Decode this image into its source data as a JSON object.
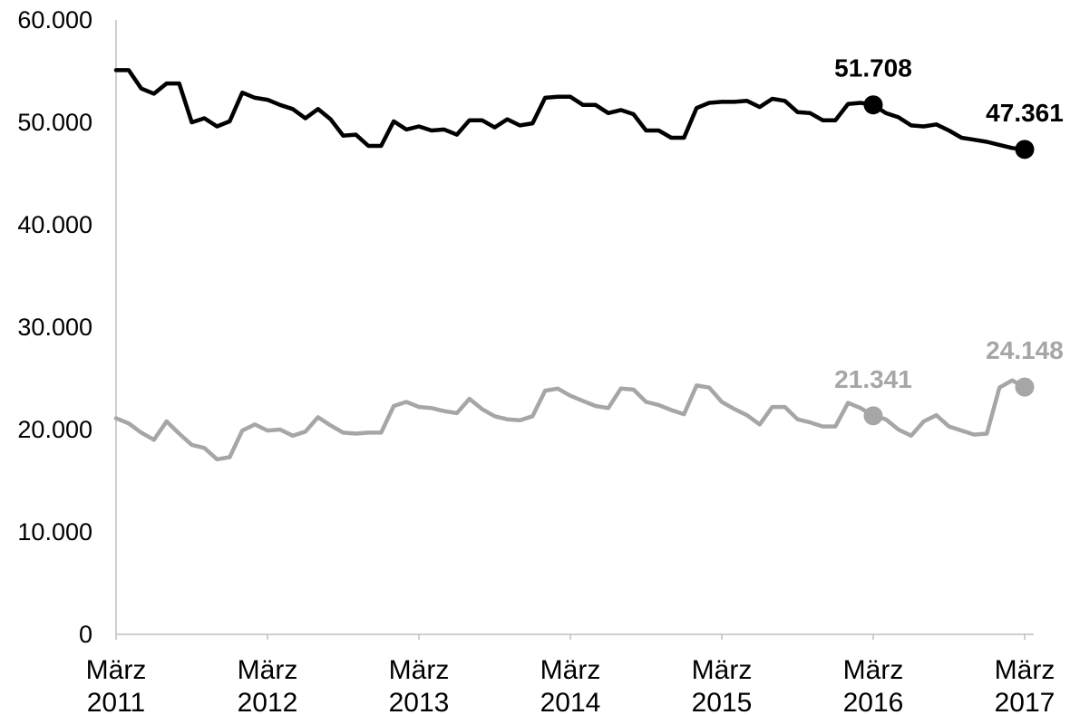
{
  "chart_data": {
    "type": "line",
    "title": "",
    "xlabel": "",
    "ylabel": "",
    "ylim": [
      0,
      60000
    ],
    "yticks": [
      {
        "value": 0,
        "label": "0"
      },
      {
        "value": 10000,
        "label": "10.000"
      },
      {
        "value": 20000,
        "label": "20.000"
      },
      {
        "value": 30000,
        "label": "30.000"
      },
      {
        "value": 40000,
        "label": "40.000"
      },
      {
        "value": 50000,
        "label": "50.000"
      },
      {
        "value": 60000,
        "label": "60.000"
      }
    ],
    "xticks": [
      {
        "month_index": 0,
        "line1": "März",
        "line2": "2011"
      },
      {
        "month_index": 12,
        "line1": "März",
        "line2": "2012"
      },
      {
        "month_index": 24,
        "line1": "März",
        "line2": "2013"
      },
      {
        "month_index": 36,
        "line1": "März",
        "line2": "2014"
      },
      {
        "month_index": 48,
        "line1": "März",
        "line2": "2015"
      },
      {
        "month_index": 60,
        "line1": "März",
        "line2": "2016"
      },
      {
        "month_index": 72,
        "line1": "März",
        "line2": "2017"
      }
    ],
    "grid": false,
    "legend": "none",
    "series": [
      {
        "color": "#000000",
        "values": [
          55100,
          55100,
          53300,
          52800,
          53800,
          53800,
          50000,
          50400,
          49600,
          50100,
          52900,
          52400,
          52200,
          51700,
          51300,
          50400,
          51300,
          50300,
          48700,
          48800,
          47700,
          47700,
          50100,
          49300,
          49600,
          49200,
          49300,
          48800,
          50200,
          50200,
          49500,
          50300,
          49700,
          49900,
          52400,
          52500,
          52500,
          51700,
          51700,
          50900,
          51200,
          50800,
          49200,
          49200,
          48500,
          48500,
          51400,
          51900,
          52000,
          52000,
          52100,
          51500,
          52300,
          52100,
          51000,
          50900,
          50200,
          50200,
          51800,
          51900,
          51708,
          50900,
          50500,
          49700,
          49600,
          49800,
          49200,
          48500,
          48300,
          48100,
          47800,
          47500,
          47361
        ],
        "markers": [
          {
            "index": 60,
            "label": "51.708"
          },
          {
            "index": 72,
            "label": "47.361"
          }
        ]
      },
      {
        "color": "#a6a6a6",
        "values": [
          21100,
          20600,
          19700,
          19000,
          20800,
          19600,
          18500,
          18200,
          17100,
          17300,
          19900,
          20500,
          19900,
          20000,
          19400,
          19800,
          21200,
          20400,
          19700,
          19600,
          19700,
          19700,
          22300,
          22700,
          22200,
          22100,
          21800,
          21600,
          23000,
          22000,
          21300,
          21000,
          20900,
          21300,
          23800,
          24000,
          23300,
          22800,
          22300,
          22100,
          24000,
          23900,
          22700,
          22400,
          21900,
          21500,
          24300,
          24100,
          22700,
          22000,
          21400,
          20500,
          22200,
          22200,
          21000,
          20700,
          20300,
          20300,
          22600,
          22100,
          21341,
          21000,
          20000,
          19400,
          20800,
          21400,
          20300,
          19900,
          19500,
          19600,
          24100,
          24800,
          24148
        ],
        "markers": [
          {
            "index": 60,
            "label": "21.341"
          },
          {
            "index": 72,
            "label": "24.148"
          }
        ]
      }
    ]
  }
}
